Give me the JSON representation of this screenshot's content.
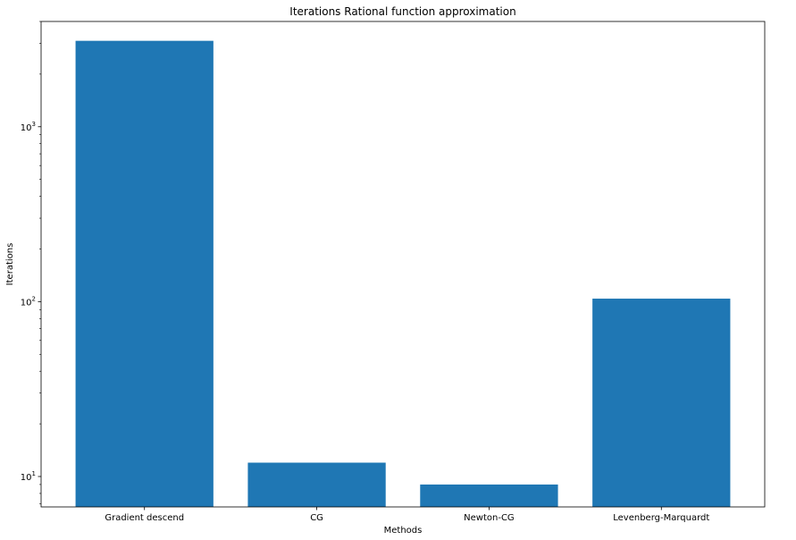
{
  "chart_data": {
    "type": "bar",
    "title": "Iterations Rational function approximation",
    "xlabel": "Methods",
    "ylabel": "Iterations",
    "yscale": "log",
    "ylim": [
      6.7,
      4000
    ],
    "categories": [
      "Gradient descend",
      "CG",
      "Newton-CG",
      "Levenberg-Marquardt"
    ],
    "values": [
      3100,
      12,
      9,
      104
    ],
    "y_major_ticks": [
      {
        "value": 10,
        "base": "10",
        "exponent": "1"
      },
      {
        "value": 100,
        "base": "10",
        "exponent": "2"
      },
      {
        "value": 1000,
        "base": "10",
        "exponent": "3"
      }
    ],
    "grid": false,
    "bar_color": "#1f77b4"
  }
}
